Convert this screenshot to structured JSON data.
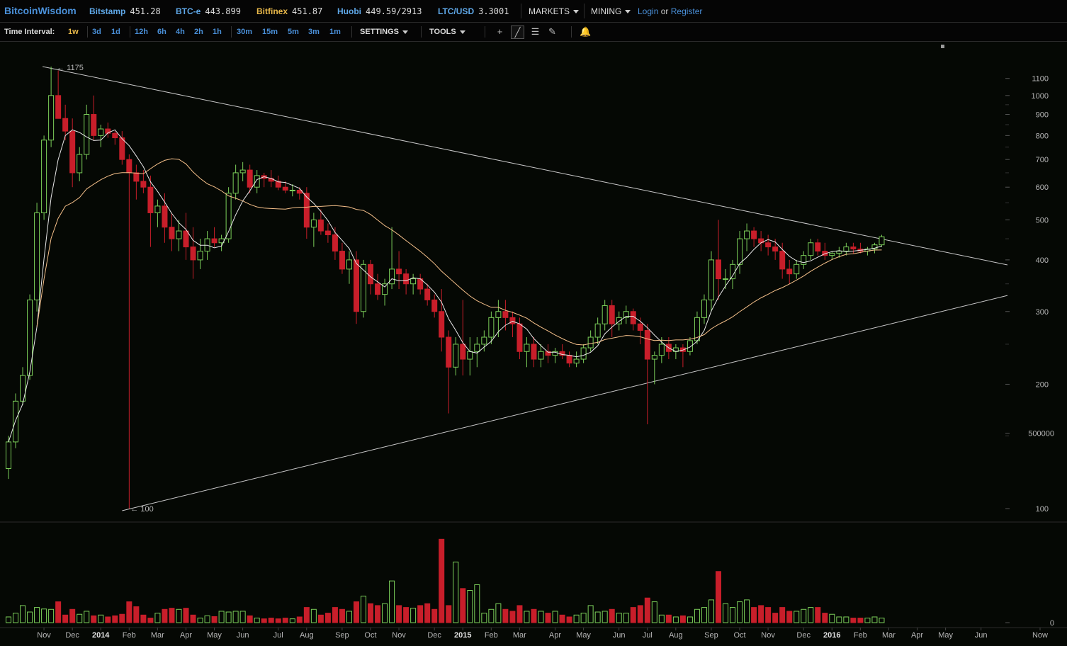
{
  "topbar": {
    "brand": "BitcoinWisdom",
    "markets": [
      {
        "name": "Bitstamp",
        "price": "451.28",
        "color": "#5fa8e8"
      },
      {
        "name": "BTC-e",
        "price": "443.899",
        "color": "#5fa8e8"
      },
      {
        "name": "Bitfinex",
        "price": "451.87",
        "color": "#e8b84a"
      },
      {
        "name": "Huobi",
        "price": "449.59/2913",
        "color": "#5fa8e8"
      },
      {
        "name": "LTC/USD",
        "price": "3.3001",
        "color": "#5fa8e8"
      }
    ],
    "menu_markets": "MARKETS",
    "menu_mining": "MINING",
    "login": "Login",
    "or": "or",
    "register": "Register"
  },
  "toolbar": {
    "time_interval_label": "Time Interval:",
    "intervals": [
      "1w",
      "3d",
      "1d",
      "12h",
      "6h",
      "4h",
      "2h",
      "1h",
      "30m",
      "15m",
      "5m",
      "3m",
      "1m"
    ],
    "active_interval": "1w",
    "settings": "SETTINGS",
    "tools": "TOOLS",
    "tool_icons": [
      "crosshair-icon",
      "line-draw-icon",
      "fib-lines-icon",
      "pen-icon",
      "bell-icon"
    ]
  },
  "colors": {
    "up": "#7ccf5a",
    "down": "#c81e2a",
    "sma_short": "#e9e9e9",
    "sma_long": "#f5c08a",
    "trendline": "#c9c9c9",
    "axis_text": "#b8b8b8"
  },
  "annotations": {
    "high": "← 1175",
    "low": "← 100"
  },
  "chart_data": {
    "type": "candlestick",
    "interval": "1w",
    "y_scale": "log",
    "y_ticks": [
      1100,
      1000,
      900,
      800,
      700,
      600,
      500,
      400,
      300,
      200,
      100
    ],
    "y_tick_labels": [
      "1100",
      "1000",
      "900",
      "800",
      "700",
      "600",
      "500",
      "400",
      "300",
      "200",
      "100"
    ],
    "volume_ticks": [
      500000,
      0
    ],
    "volume_tick_labels": [
      "500000",
      "0"
    ],
    "x_labels": [
      {
        "t": "Nov",
        "i": 2
      },
      {
        "t": "Dec",
        "i": 6
      },
      {
        "t": "2014",
        "i": 10,
        "bold": true
      },
      {
        "t": "Feb",
        "i": 14
      },
      {
        "t": "Mar",
        "i": 18
      },
      {
        "t": "Apr",
        "i": 22
      },
      {
        "t": "May",
        "i": 26
      },
      {
        "t": "Jun",
        "i": 30
      },
      {
        "t": "Jul",
        "i": 35
      },
      {
        "t": "Aug",
        "i": 39
      },
      {
        "t": "Sep",
        "i": 44
      },
      {
        "t": "Oct",
        "i": 48
      },
      {
        "t": "Nov",
        "i": 52
      },
      {
        "t": "Dec",
        "i": 57
      },
      {
        "t": "2015",
        "i": 61,
        "bold": true
      },
      {
        "t": "Feb",
        "i": 65
      },
      {
        "t": "Mar",
        "i": 69
      },
      {
        "t": "Apr",
        "i": 74
      },
      {
        "t": "May",
        "i": 78
      },
      {
        "t": "Jun",
        "i": 83
      },
      {
        "t": "Jul",
        "i": 87
      },
      {
        "t": "Aug",
        "i": 91
      },
      {
        "t": "Sep",
        "i": 96
      },
      {
        "t": "Oct",
        "i": 100
      },
      {
        "t": "Nov",
        "i": 104
      },
      {
        "t": "Dec",
        "i": 109
      },
      {
        "t": "2016",
        "i": 113,
        "bold": true
      },
      {
        "t": "Feb",
        "i": 117
      },
      {
        "t": "Mar",
        "i": 121
      },
      {
        "t": "Apr",
        "i": 125
      },
      {
        "t": "May",
        "i": 129
      },
      {
        "t": "Jun",
        "i": 134
      },
      {
        "t": "Now",
        "i": 141
      }
    ],
    "ohlcv": [
      [
        125,
        150,
        118,
        145,
        15000
      ],
      [
        145,
        190,
        140,
        182,
        25000
      ],
      [
        182,
        220,
        178,
        210,
        45000
      ],
      [
        210,
        330,
        205,
        320,
        28000
      ],
      [
        320,
        550,
        300,
        520,
        40000
      ],
      [
        520,
        800,
        500,
        780,
        36000
      ],
      [
        780,
        1175,
        750,
        1000,
        35000
      ],
      [
        1000,
        1150,
        900,
        880,
        55000
      ],
      [
        880,
        950,
        780,
        820,
        20000
      ],
      [
        820,
        880,
        600,
        650,
        35000
      ],
      [
        650,
        750,
        620,
        720,
        22000
      ],
      [
        720,
        950,
        700,
        900,
        30000
      ],
      [
        900,
        1000,
        780,
        800,
        18000
      ],
      [
        800,
        850,
        750,
        830,
        20000
      ],
      [
        830,
        860,
        790,
        810,
        15000
      ],
      [
        810,
        820,
        760,
        790,
        18000
      ],
      [
        790,
        820,
        680,
        700,
        22000
      ],
      [
        700,
        720,
        100,
        650,
        55000
      ],
      [
        650,
        680,
        560,
        620,
        42000
      ],
      [
        620,
        660,
        580,
        600,
        20000
      ],
      [
        600,
        640,
        430,
        520,
        12000
      ],
      [
        520,
        560,
        480,
        540,
        25000
      ],
      [
        540,
        580,
        440,
        480,
        35000
      ],
      [
        480,
        520,
        420,
        450,
        38000
      ],
      [
        450,
        500,
        420,
        470,
        35000
      ],
      [
        470,
        520,
        400,
        430,
        38000
      ],
      [
        430,
        480,
        360,
        400,
        20000
      ],
      [
        400,
        450,
        380,
        420,
        12000
      ],
      [
        420,
        470,
        400,
        450,
        18000
      ],
      [
        450,
        480,
        430,
        440,
        16000
      ],
      [
        440,
        460,
        420,
        450,
        30000
      ],
      [
        450,
        600,
        440,
        580,
        28000
      ],
      [
        580,
        680,
        560,
        650,
        30000
      ],
      [
        650,
        690,
        620,
        660,
        30000
      ],
      [
        660,
        680,
        580,
        600,
        18000
      ],
      [
        600,
        660,
        580,
        640,
        12000
      ],
      [
        640,
        650,
        600,
        630,
        10000
      ],
      [
        630,
        660,
        600,
        620,
        12000
      ],
      [
        620,
        640,
        590,
        600,
        10000
      ],
      [
        600,
        620,
        580,
        590,
        12000
      ],
      [
        590,
        610,
        570,
        590,
        10000
      ],
      [
        590,
        600,
        560,
        580,
        15000
      ],
      [
        580,
        600,
        450,
        480,
        40000
      ],
      [
        480,
        520,
        430,
        500,
        35000
      ],
      [
        500,
        530,
        460,
        470,
        20000
      ],
      [
        470,
        490,
        440,
        460,
        25000
      ],
      [
        460,
        480,
        400,
        420,
        40000
      ],
      [
        420,
        440,
        370,
        380,
        35000
      ],
      [
        380,
        420,
        350,
        400,
        30000
      ],
      [
        400,
        420,
        280,
        300,
        55000
      ],
      [
        300,
        400,
        290,
        390,
        70000
      ],
      [
        390,
        400,
        330,
        350,
        50000
      ],
      [
        350,
        370,
        320,
        330,
        45000
      ],
      [
        330,
        360,
        310,
        350,
        50000
      ],
      [
        350,
        480,
        340,
        380,
        110000
      ],
      [
        380,
        420,
        340,
        370,
        45000
      ],
      [
        370,
        380,
        330,
        350,
        40000
      ],
      [
        350,
        370,
        330,
        360,
        38000
      ],
      [
        360,
        370,
        330,
        340,
        45000
      ],
      [
        340,
        350,
        310,
        320,
        50000
      ],
      [
        320,
        330,
        290,
        300,
        35000
      ],
      [
        300,
        340,
        240,
        260,
        220000
      ],
      [
        260,
        270,
        170,
        220,
        45000
      ],
      [
        220,
        260,
        210,
        250,
        160000
      ],
      [
        250,
        320,
        210,
        230,
        90000
      ],
      [
        230,
        260,
        210,
        240,
        85000
      ],
      [
        240,
        260,
        220,
        250,
        100000
      ],
      [
        250,
        270,
        240,
        260,
        25000
      ],
      [
        260,
        300,
        250,
        290,
        35000
      ],
      [
        290,
        320,
        260,
        300,
        50000
      ],
      [
        300,
        320,
        270,
        290,
        35000
      ],
      [
        290,
        300,
        260,
        280,
        30000
      ],
      [
        280,
        290,
        230,
        240,
        45000
      ],
      [
        240,
        260,
        220,
        250,
        30000
      ],
      [
        250,
        260,
        220,
        230,
        35000
      ],
      [
        230,
        250,
        220,
        240,
        30000
      ],
      [
        240,
        250,
        225,
        235,
        25000
      ],
      [
        235,
        245,
        225,
        240,
        30000
      ],
      [
        240,
        250,
        230,
        235,
        20000
      ],
      [
        235,
        240,
        220,
        225,
        15000
      ],
      [
        225,
        240,
        220,
        230,
        20000
      ],
      [
        230,
        250,
        225,
        245,
        25000
      ],
      [
        245,
        270,
        240,
        260,
        45000
      ],
      [
        260,
        290,
        250,
        280,
        28000
      ],
      [
        280,
        320,
        270,
        310,
        30000
      ],
      [
        310,
        320,
        260,
        280,
        35000
      ],
      [
        280,
        300,
        270,
        290,
        25000
      ],
      [
        290,
        310,
        280,
        300,
        25000
      ],
      [
        300,
        305,
        270,
        280,
        40000
      ],
      [
        280,
        290,
        250,
        270,
        45000
      ],
      [
        270,
        280,
        160,
        230,
        65000
      ],
      [
        230,
        240,
        200,
        235,
        55000
      ],
      [
        235,
        260,
        225,
        250,
        20000
      ],
      [
        250,
        260,
        230,
        240,
        20000
      ],
      [
        240,
        250,
        230,
        245,
        15000
      ],
      [
        245,
        250,
        220,
        240,
        18000
      ],
      [
        240,
        260,
        235,
        255,
        15000
      ],
      [
        255,
        300,
        250,
        290,
        35000
      ],
      [
        290,
        330,
        280,
        320,
        40000
      ],
      [
        320,
        420,
        300,
        400,
        60000
      ],
      [
        400,
        500,
        320,
        360,
        135000
      ],
      [
        360,
        380,
        340,
        360,
        50000
      ],
      [
        360,
        400,
        340,
        390,
        40000
      ],
      [
        390,
        470,
        370,
        450,
        55000
      ],
      [
        450,
        490,
        420,
        470,
        60000
      ],
      [
        470,
        480,
        430,
        450,
        40000
      ],
      [
        450,
        470,
        420,
        440,
        45000
      ],
      [
        440,
        460,
        410,
        430,
        40000
      ],
      [
        430,
        450,
        400,
        420,
        25000
      ],
      [
        420,
        440,
        360,
        380,
        40000
      ],
      [
        380,
        400,
        350,
        370,
        30000
      ],
      [
        370,
        400,
        360,
        390,
        30000
      ],
      [
        390,
        420,
        380,
        410,
        35000
      ],
      [
        410,
        450,
        400,
        440,
        40000
      ],
      [
        440,
        450,
        410,
        420,
        40000
      ],
      [
        420,
        440,
        400,
        410,
        25000
      ],
      [
        410,
        420,
        400,
        415,
        22000
      ],
      [
        415,
        430,
        405,
        420,
        15000
      ],
      [
        420,
        440,
        410,
        430,
        15000
      ],
      [
        430,
        440,
        415,
        425,
        12000
      ],
      [
        425,
        440,
        415,
        420,
        12000
      ],
      [
        420,
        430,
        410,
        425,
        12000
      ],
      [
        425,
        440,
        415,
        435,
        15000
      ],
      [
        435,
        460,
        430,
        455,
        12000
      ]
    ]
  }
}
